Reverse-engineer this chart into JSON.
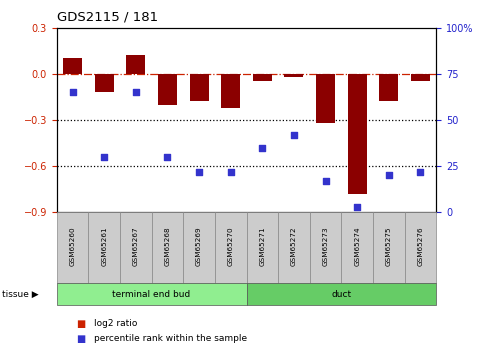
{
  "title": "GDS2115 / 181",
  "samples": [
    "GSM65260",
    "GSM65261",
    "GSM65267",
    "GSM65268",
    "GSM65269",
    "GSM65270",
    "GSM65271",
    "GSM65272",
    "GSM65273",
    "GSM65274",
    "GSM65275",
    "GSM65276"
  ],
  "log2_ratio": [
    0.1,
    -0.12,
    0.12,
    -0.2,
    -0.18,
    -0.22,
    -0.05,
    -0.02,
    -0.32,
    -0.78,
    -0.18,
    -0.05
  ],
  "percentile_rank": [
    65,
    30,
    65,
    30,
    22,
    22,
    35,
    42,
    17,
    3,
    20,
    22
  ],
  "bar_color": "#8B0000",
  "dot_color": "#3333CC",
  "groups": [
    {
      "label": "terminal end bud",
      "start": 0,
      "end": 6,
      "color": "#90EE90"
    },
    {
      "label": "duct",
      "start": 6,
      "end": 12,
      "color": "#66CC66"
    }
  ],
  "ylim_left": [
    -0.9,
    0.3
  ],
  "ylim_right": [
    0,
    100
  ],
  "yticks_left": [
    -0.9,
    -0.6,
    -0.3,
    0.0,
    0.3
  ],
  "yticks_right": [
    0,
    25,
    50,
    75,
    100
  ],
  "hline_y": 0,
  "dotted_lines": [
    -0.3,
    -0.6
  ],
  "tissue_label": "tissue",
  "legend_log2": "log2 ratio",
  "legend_pct": "percentile rank within the sample",
  "left_tick_color": "#CC2200",
  "right_tick_color": "#2222CC"
}
